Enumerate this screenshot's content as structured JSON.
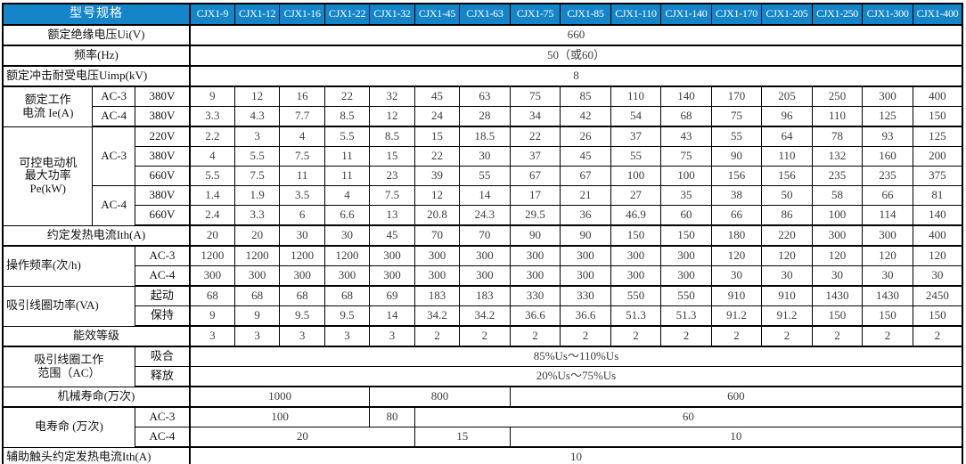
{
  "colors": {
    "header_bg": "#1485c8",
    "header_text": "#ffffff",
    "border": "#000000",
    "value_text": "#3d3d3d"
  },
  "header": {
    "label": "型号规格",
    "models": [
      "CJX1-9",
      "CJX1-12",
      "CJX1-16",
      "CJX1-22",
      "CJX1-32",
      "CJX1-45",
      "CJX1-63",
      "CJX1-75",
      "CJX1-85",
      "CJX1-110",
      "CJX1-140",
      "CJX1-170",
      "CJX1-205",
      "CJX1-250",
      "CJX1-300",
      "CJX1-400"
    ]
  },
  "rows": {
    "ui": {
      "label": "额定绝缘电压Ui(V)",
      "value": "660"
    },
    "freq": {
      "label": "频率(Hz)",
      "value": "50（或60）"
    },
    "uimp": {
      "label": "额定冲击耐受电压Uimp(kV)",
      "value": "8"
    },
    "ie": {
      "label": "额定工作\n电流 Ie(A)"
    },
    "ie_ac3": {
      "cat": "AC-3",
      "volt": "380V",
      "values": [
        "9",
        "12",
        "16",
        "22",
        "32",
        "45",
        "63",
        "75",
        "85",
        "110",
        "140",
        "170",
        "205",
        "250",
        "300",
        "400"
      ]
    },
    "ie_ac4": {
      "cat": "AC-4",
      "volt": "380V",
      "values": [
        "3.3",
        "4.3",
        "7.7",
        "8.5",
        "12",
        "24",
        "28",
        "34",
        "42",
        "54",
        "68",
        "75",
        "96",
        "110",
        "125",
        "150"
      ]
    },
    "pe": {
      "label": "可控电动机\n最大功率\nPe(kW)"
    },
    "pe_ac3": {
      "cat": "AC-3"
    },
    "pe_ac3_220": {
      "volt": "220V",
      "values": [
        "2.2",
        "3",
        "4",
        "5.5",
        "8.5",
        "15",
        "18.5",
        "22",
        "26",
        "37",
        "43",
        "55",
        "64",
        "78",
        "93",
        "125"
      ]
    },
    "pe_ac3_380": {
      "volt": "380V",
      "values": [
        "4",
        "5.5",
        "7.5",
        "11",
        "15",
        "22",
        "30",
        "37",
        "45",
        "55",
        "75",
        "90",
        "110",
        "132",
        "160",
        "200"
      ]
    },
    "pe_ac3_660": {
      "volt": "660V",
      "values": [
        "5.5",
        "7.5",
        "11",
        "11",
        "23",
        "39",
        "55",
        "67",
        "67",
        "100",
        "100",
        "156",
        "156",
        "235",
        "235",
        "375"
      ]
    },
    "pe_ac4": {
      "cat": "AC-4"
    },
    "pe_ac4_380": {
      "volt": "380V",
      "values": [
        "1.4",
        "1.9",
        "3.5",
        "4",
        "7.5",
        "12",
        "14",
        "17",
        "21",
        "27",
        "35",
        "38",
        "50",
        "58",
        "66",
        "81"
      ]
    },
    "pe_ac4_660": {
      "volt": "660V",
      "values": [
        "2.4",
        "3.3",
        "6",
        "6.6",
        "13",
        "20.8",
        "24.3",
        "29.5",
        "36",
        "46.9",
        "60",
        "66",
        "86",
        "100",
        "114",
        "140"
      ]
    },
    "ith": {
      "label": "约定发热电流Ith(A)",
      "values": [
        "20",
        "20",
        "30",
        "30",
        "45",
        "70",
        "70",
        "90",
        "90",
        "150",
        "150",
        "180",
        "220",
        "300",
        "300",
        "400"
      ]
    },
    "op_freq": {
      "label": "操作频率(次/h)"
    },
    "op_ac3": {
      "cat": "AC-3",
      "values": [
        "1200",
        "1200",
        "1200",
        "1200",
        "300",
        "300",
        "300",
        "300",
        "300",
        "300",
        "300",
        "120",
        "120",
        "120",
        "120",
        "120"
      ]
    },
    "op_ac4": {
      "cat": "AC-4",
      "values": [
        "300",
        "300",
        "300",
        "300",
        "300",
        "300",
        "300",
        "300",
        "300",
        "300",
        "300",
        "30",
        "30",
        "30",
        "30",
        "30"
      ]
    },
    "coil_power": {
      "label": "吸引线圈功率(VA)"
    },
    "coil_start": {
      "cat": "起动",
      "values": [
        "68",
        "68",
        "68",
        "68",
        "69",
        "183",
        "183",
        "330",
        "330",
        "550",
        "550",
        "910",
        "910",
        "1430",
        "1430",
        "2450"
      ]
    },
    "coil_hold": {
      "cat": "保持",
      "values": [
        "9",
        "9",
        "9.5",
        "9.5",
        "14",
        "34.2",
        "34.2",
        "36.6",
        "36.6",
        "51.3",
        "51.3",
        "91.2",
        "91.2",
        "150",
        "150",
        "150"
      ]
    },
    "energy": {
      "label": "能效等级",
      "values": [
        "3",
        "3",
        "3",
        "3",
        "3",
        "2",
        "2",
        "2",
        "2",
        "2",
        "2",
        "2",
        "2",
        "2",
        "2",
        "2"
      ]
    },
    "coil_range": {
      "label": "吸引线圈工作\n范围（AC）"
    },
    "pickup": {
      "cat": "吸合",
      "value": "85%Us～110%Us"
    },
    "release": {
      "cat": "释放",
      "value": "20%Us～75%Us"
    },
    "mech_life": {
      "label": "机械寿命(万次)",
      "segments": [
        {
          "value": "1000",
          "span": 4
        },
        {
          "value": "800",
          "span": 3
        },
        {
          "value": "600",
          "span": 9
        }
      ]
    },
    "elec_life": {
      "label": "电寿命 (万次)"
    },
    "elec_ac3": {
      "cat": "AC-3",
      "segments": [
        {
          "value": "100",
          "span": 4
        },
        {
          "value": "80",
          "span": 1
        },
        {
          "value": "60",
          "span": 11
        }
      ]
    },
    "elec_ac4": {
      "cat": "AC-4",
      "segments": [
        {
          "value": "20",
          "span": 5
        },
        {
          "value": "15",
          "span": 2
        },
        {
          "value": "10",
          "span": 9
        }
      ]
    },
    "aux_ith": {
      "label": "辅助触头约定发热电流Ith(A)",
      "value": "10"
    }
  }
}
